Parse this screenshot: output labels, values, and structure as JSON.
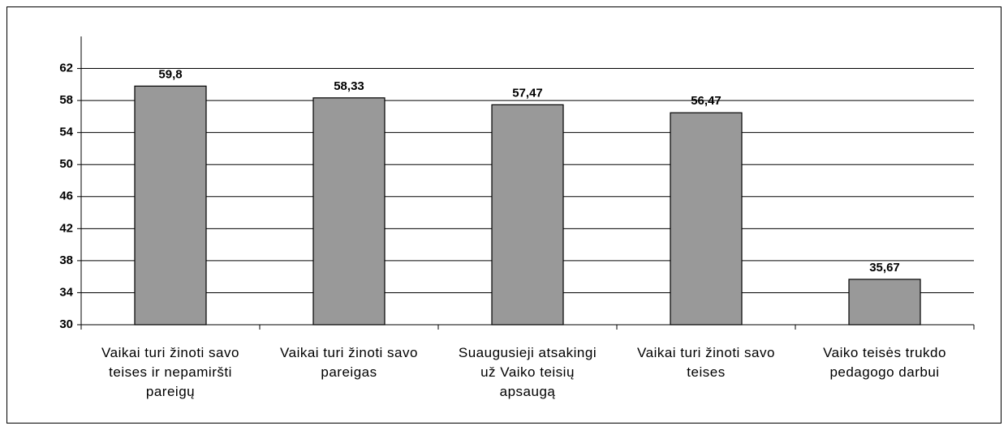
{
  "chart_data": {
    "type": "bar",
    "categories": [
      "Vaikai turi žinoti savo teises ir nepamiršti pareigų",
      "Vaikai turi žinoti savo pareigas",
      "Suaugusieji atsakingi už Vaiko teisių apsaugą",
      "Vaikai turi žinoti savo teises",
      "Vaiko teisės trukdo pedagogo darbui"
    ],
    "values": [
      59.8,
      58.33,
      57.47,
      56.47,
      35.67
    ],
    "value_labels": [
      "59,8",
      "58,33",
      "57,47",
      "56,47",
      "35,67"
    ],
    "color": "#999999",
    "ylim": [
      30,
      66
    ],
    "yticks": [
      30,
      34,
      38,
      42,
      46,
      50,
      54,
      58,
      62
    ],
    "grid": true
  }
}
